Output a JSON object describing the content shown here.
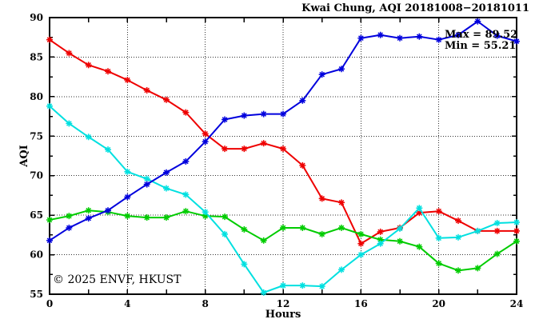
{
  "chart_data": {
    "type": "line",
    "title": "Kwai Chung, AQI 20181008−20181011",
    "xlabel": "Hours",
    "ylabel": "AQI",
    "xlim": [
      0,
      24
    ],
    "ylim": [
      55,
      90
    ],
    "xticks_labeled": [
      0,
      4,
      8,
      12,
      16,
      20,
      24
    ],
    "xticks_major_step": 2,
    "yticks_labeled": [
      55,
      60,
      65,
      70,
      75,
      80,
      85,
      90
    ],
    "yticks_minor_step": 2.5,
    "xgrid": [
      4,
      8,
      12,
      16,
      20
    ],
    "ygrid": [
      60,
      65,
      70,
      75,
      80,
      85
    ],
    "grid": true,
    "legend": "none",
    "x": [
      0,
      1,
      2,
      3,
      4,
      5,
      6,
      7,
      8,
      9,
      10,
      11,
      12,
      13,
      14,
      15,
      16,
      17,
      18,
      19,
      20,
      21,
      22,
      23,
      24
    ],
    "series": [
      {
        "name": "series-red",
        "color": "#ee0000",
        "values": [
          87.2,
          85.5,
          84.0,
          83.2,
          82.1,
          80.8,
          79.6,
          78.0,
          75.3,
          73.4,
          73.4,
          74.1,
          73.4,
          71.3,
          67.1,
          66.6,
          61.4,
          62.9,
          63.4,
          65.3,
          65.5,
          64.3,
          63.0,
          63.0,
          63.0
        ]
      },
      {
        "name": "series-green",
        "color": "#00cc00",
        "values": [
          64.4,
          64.9,
          65.6,
          65.4,
          64.9,
          64.7,
          64.7,
          65.5,
          64.9,
          64.8,
          63.2,
          61.8,
          63.4,
          63.4,
          62.6,
          63.4,
          62.6,
          61.9,
          61.7,
          61.0,
          58.9,
          58.0,
          58.3,
          60.1,
          61.7
        ]
      },
      {
        "name": "series-cyan",
        "color": "#00e0e0",
        "values": [
          78.8,
          76.6,
          74.9,
          73.3,
          70.5,
          69.6,
          68.4,
          67.6,
          65.4,
          62.6,
          58.8,
          55.21,
          56.1,
          56.1,
          56.0,
          58.1,
          60.0,
          61.4,
          63.3,
          65.9,
          62.1,
          62.2,
          63.0,
          64.0,
          64.1
        ]
      },
      {
        "name": "series-blue",
        "color": "#0000dd",
        "values": [
          61.8,
          63.4,
          64.6,
          65.6,
          67.3,
          68.9,
          70.4,
          71.8,
          74.3,
          77.1,
          77.6,
          77.8,
          77.8,
          79.5,
          82.8,
          83.5,
          87.4,
          87.8,
          87.4,
          87.6,
          87.2,
          87.8,
          89.52,
          87.7,
          87.0
        ]
      }
    ],
    "annotations": [
      {
        "name": "max-annotation",
        "text": "Max = 89.52"
      },
      {
        "name": "min-annotation",
        "text": "Min = 55.21"
      }
    ],
    "stats": {
      "max": 89.52,
      "min": 55.21
    },
    "watermark": "© 2025 ENVF, HKUST",
    "colors": {
      "background": "#ffffff",
      "axis": "#000000",
      "grid": "#333333",
      "watermark": "#d9d9d9"
    }
  }
}
